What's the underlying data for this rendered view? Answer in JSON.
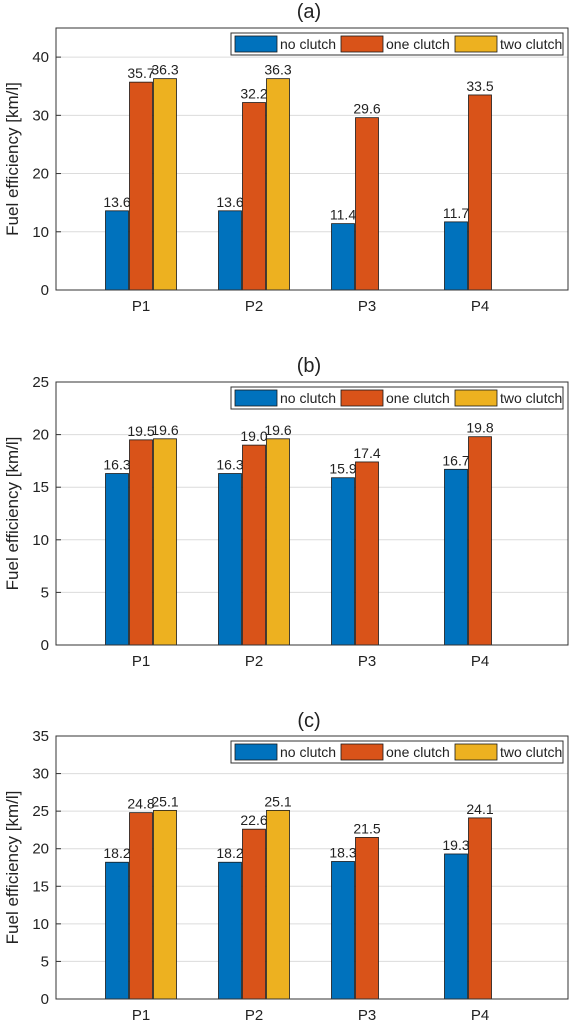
{
  "figure": {
    "ylabel": "Fuel efficiency [km/l]",
    "categories": [
      "P1",
      "P2",
      "P3",
      "P4"
    ],
    "series_names": [
      "no clutch",
      "one clutch",
      "two clutch"
    ],
    "colors": [
      "#0072BD",
      "#D95319",
      "#EDB120"
    ]
  },
  "chart_data": [
    {
      "type": "bar",
      "title": "(a)",
      "ylabel": "Fuel efficiency [km/l]",
      "categories": [
        "P1",
        "P2",
        "P3",
        "P4"
      ],
      "ylim": [
        0,
        45
      ],
      "yticks": [
        0,
        10,
        20,
        30,
        40
      ],
      "grid": true,
      "legend": "top-right, horizontal",
      "series": [
        {
          "name": "no clutch",
          "color": "#0072BD",
          "values": [
            13.6,
            13.6,
            11.4,
            11.7
          ],
          "labels": [
            "13.6",
            "13.6",
            "11.4",
            "11.7"
          ]
        },
        {
          "name": "one clutch",
          "color": "#D95319",
          "values": [
            35.7,
            32.2,
            29.6,
            33.5
          ],
          "labels": [
            "35.7",
            "32.2",
            "29.6",
            "33.5"
          ]
        },
        {
          "name": "two clutch",
          "color": "#EDB120",
          "values": [
            36.3,
            36.3,
            null,
            null
          ],
          "labels": [
            "36.3",
            "36.3",
            null,
            null
          ]
        }
      ]
    },
    {
      "type": "bar",
      "title": "(b)",
      "ylabel": "Fuel efficiency [km/l]",
      "categories": [
        "P1",
        "P2",
        "P3",
        "P4"
      ],
      "ylim": [
        0,
        25
      ],
      "yticks": [
        0,
        5,
        10,
        15,
        20,
        25
      ],
      "grid": true,
      "legend": "top-right, horizontal",
      "series": [
        {
          "name": "no clutch",
          "color": "#0072BD",
          "values": [
            16.3,
            16.3,
            15.9,
            16.7
          ],
          "labels": [
            "16.3",
            "16.3",
            "15.9",
            "16.7"
          ]
        },
        {
          "name": "one clutch",
          "color": "#D95319",
          "values": [
            19.5,
            19.0,
            17.4,
            19.8
          ],
          "labels": [
            "19.5",
            "19.0",
            "17.4",
            "19.8"
          ]
        },
        {
          "name": "two clutch",
          "color": "#EDB120",
          "values": [
            19.6,
            19.6,
            null,
            null
          ],
          "labels": [
            "19.6",
            "19.6",
            null,
            null
          ]
        }
      ]
    },
    {
      "type": "bar",
      "title": "(c)",
      "ylabel": "Fuel efficiency [km/l]",
      "categories": [
        "P1",
        "P2",
        "P3",
        "P4"
      ],
      "ylim": [
        0,
        35
      ],
      "yticks": [
        0,
        5,
        10,
        15,
        20,
        25,
        30,
        35
      ],
      "grid": true,
      "legend": "top-right, horizontal",
      "series": [
        {
          "name": "no clutch",
          "color": "#0072BD",
          "values": [
            18.2,
            18.2,
            18.3,
            19.3
          ],
          "labels": [
            "18.2",
            "18.2",
            "18.3",
            "19.3"
          ]
        },
        {
          "name": "one clutch",
          "color": "#D95319",
          "values": [
            24.8,
            22.6,
            21.5,
            24.1
          ],
          "labels": [
            "24.8",
            "22.6",
            "21.5",
            "24.1"
          ]
        },
        {
          "name": "two clutch",
          "color": "#EDB120",
          "values": [
            25.1,
            25.1,
            null,
            null
          ],
          "labels": [
            "25.1",
            "25.1",
            null,
            null
          ]
        }
      ]
    }
  ]
}
